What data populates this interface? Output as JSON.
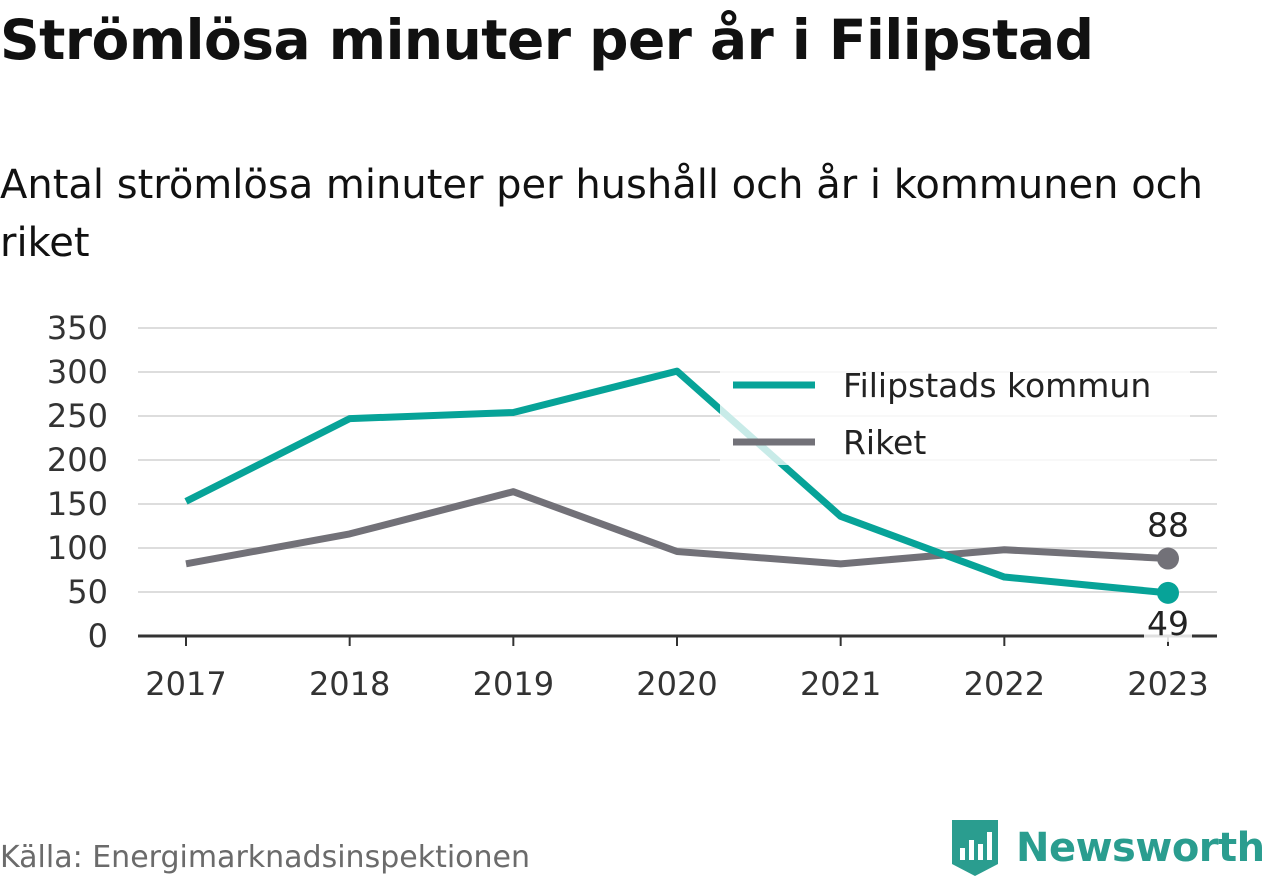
{
  "title": "Strömlösa minuter per år i Filipstad",
  "subtitle": "Antal strömlösa minuter per hushåll och år i kommunen och riket",
  "source": "Källa: Energimarknadsinspektionen",
  "brand": "Newsworthy",
  "colors": {
    "teal": "#07a398",
    "gray": "#727178",
    "grid": "#dddddd",
    "axis": "#333333"
  },
  "chart_data": {
    "type": "line",
    "title": "Strömlösa minuter per år i Filipstad",
    "subtitle": "Antal strömlösa minuter per hushåll och år i kommunen och riket",
    "xlabel": "",
    "ylabel": "",
    "x": [
      "2017",
      "2018",
      "2019",
      "2020",
      "2021",
      "2022",
      "2023"
    ],
    "ylim": [
      0,
      350
    ],
    "yticks": [
      0,
      50,
      100,
      150,
      200,
      250,
      300,
      350
    ],
    "grid": true,
    "legend": "top-right",
    "series": [
      {
        "name": "Filipstads kommun",
        "color": "#07a398",
        "values": [
          153,
          247,
          254,
          301,
          136,
          67,
          49
        ],
        "end_label": "49"
      },
      {
        "name": "Riket",
        "color": "#727178",
        "values": [
          82,
          116,
          164,
          96,
          82,
          98,
          88
        ],
        "end_label": "88"
      }
    ]
  }
}
